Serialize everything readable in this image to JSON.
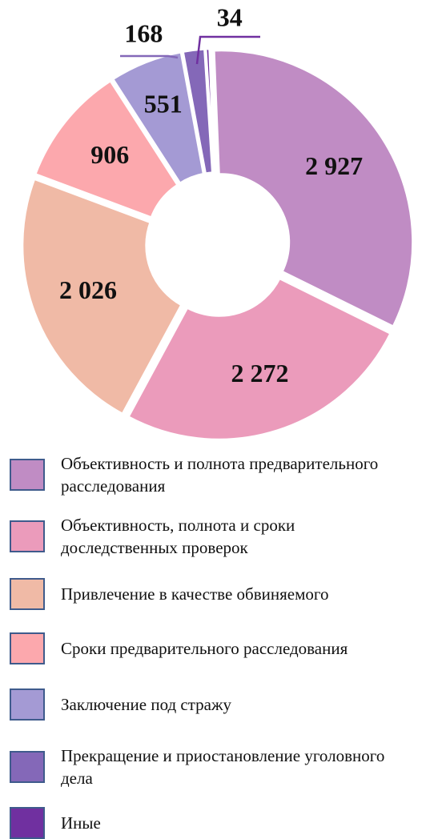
{
  "chart_data": {
    "type": "donut",
    "categories": [
      "Объективность и полнота предварительного расследования",
      "Объективность, полнота и сроки доследственных проверок",
      "Привлечение в качестве обвиняемого",
      "Сроки предварительного расследования",
      "Заключение под стражу",
      "Прекращение и приостановление уголовного дела",
      "Иные"
    ],
    "values": [
      2927,
      2272,
      2026,
      906,
      551,
      168,
      34
    ],
    "value_labels": [
      "2 927",
      "2 272",
      "2 026",
      "906",
      "551",
      "168",
      "34"
    ],
    "colors": [
      "#c08cc4",
      "#eb9bbb",
      "#f0baa6",
      "#fca8ad",
      "#a49ad4",
      "#8468b8",
      "#7030a0"
    ]
  }
}
